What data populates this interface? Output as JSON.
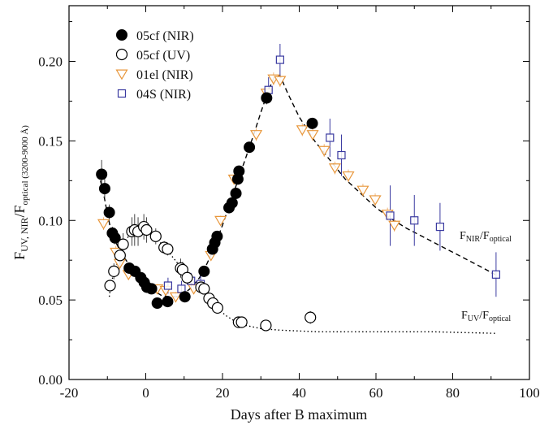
{
  "chart_data": {
    "type": "scatter",
    "xlabel": "Days after B maximum",
    "ylabel_main": "F",
    "ylabel_sub": "UV, NIR",
    "ylabel_main2": "/F",
    "ylabel_sub2": "optical (3200-9000 Å)",
    "xlim": [
      -20,
      100
    ],
    "ylim": [
      0.0,
      0.235
    ],
    "xticks": [
      -20,
      0,
      20,
      40,
      60,
      80,
      100
    ],
    "xtick_labels": [
      "-20",
      "0",
      "20",
      "40",
      "60",
      "80",
      "100"
    ],
    "yticks": [
      0.0,
      0.05,
      0.1,
      0.15,
      0.2
    ],
    "ytick_labels": [
      "0.00",
      "0.05",
      "0.10",
      "0.15",
      "0.20"
    ],
    "grid": false,
    "legend_position": "top-left",
    "series": [
      {
        "name": "05cf  (NIR)",
        "marker": "filled-circle",
        "color": "#000000",
        "points": [
          {
            "x": -11.5,
            "y": 0.129,
            "err": 0.009
          },
          {
            "x": -10.7,
            "y": 0.12,
            "err": 0.006
          },
          {
            "x": -9.5,
            "y": 0.105,
            "err": 0.005
          },
          {
            "x": -8.7,
            "y": 0.092,
            "err": 0.004
          },
          {
            "x": -8.0,
            "y": 0.089,
            "err": 0.004
          },
          {
            "x": -4.3,
            "y": 0.07,
            "err": 0.003
          },
          {
            "x": -2.8,
            "y": 0.068,
            "err": 0.003
          },
          {
            "x": -1.3,
            "y": 0.064,
            "err": 0.003
          },
          {
            "x": -0.4,
            "y": 0.061,
            "err": 0.003
          },
          {
            "x": 0.3,
            "y": 0.058,
            "err": 0.003
          },
          {
            "x": 1.5,
            "y": 0.057,
            "err": 0.003
          },
          {
            "x": 3.0,
            "y": 0.048,
            "err": 0.003
          },
          {
            "x": 5.7,
            "y": 0.049,
            "err": 0.003
          },
          {
            "x": 10.2,
            "y": 0.052,
            "err": 0.003
          },
          {
            "x": 15.2,
            "y": 0.068,
            "err": 0.003
          },
          {
            "x": 17.4,
            "y": 0.082,
            "err": 0.003
          },
          {
            "x": 18.0,
            "y": 0.086,
            "err": 0.003
          },
          {
            "x": 18.6,
            "y": 0.09,
            "err": 0.003
          },
          {
            "x": 21.7,
            "y": 0.108,
            "err": 0.003
          },
          {
            "x": 22.5,
            "y": 0.111,
            "err": 0.003
          },
          {
            "x": 23.5,
            "y": 0.117,
            "err": 0.003
          },
          {
            "x": 24.0,
            "y": 0.126,
            "err": 0.003
          },
          {
            "x": 24.3,
            "y": 0.131,
            "err": 0.003
          },
          {
            "x": 27.0,
            "y": 0.146,
            "err": 0.003
          },
          {
            "x": 31.5,
            "y": 0.177,
            "err": 0.004
          },
          {
            "x": 43.4,
            "y": 0.161,
            "err": 0.003
          }
        ]
      },
      {
        "name": "05cf  (UV)",
        "marker": "open-circle",
        "color": "#000000",
        "points": [
          {
            "x": -9.3,
            "y": 0.059,
            "err": 0.003
          },
          {
            "x": -8.3,
            "y": 0.068,
            "err": 0.005
          },
          {
            "x": -6.7,
            "y": 0.078,
            "err": 0.008
          },
          {
            "x": -5.9,
            "y": 0.085,
            "err": 0.007
          },
          {
            "x": -3.6,
            "y": 0.093,
            "err": 0.009
          },
          {
            "x": -2.9,
            "y": 0.094,
            "err": 0.01
          },
          {
            "x": -2.0,
            "y": 0.093,
            "err": 0.009
          },
          {
            "x": -0.5,
            "y": 0.096,
            "err": 0.008
          },
          {
            "x": 0.2,
            "y": 0.094,
            "err": 0.008
          },
          {
            "x": 2.6,
            "y": 0.09,
            "err": 0.005
          },
          {
            "x": 4.8,
            "y": 0.083,
            "err": 0.004
          },
          {
            "x": 5.7,
            "y": 0.082,
            "err": 0.004
          },
          {
            "x": 9.1,
            "y": 0.07,
            "err": 0.006
          },
          {
            "x": 9.6,
            "y": 0.069,
            "err": 0.005
          },
          {
            "x": 10.8,
            "y": 0.064,
            "err": 0.004
          },
          {
            "x": 14.4,
            "y": 0.058,
            "err": 0.003
          },
          {
            "x": 15.2,
            "y": 0.057,
            "err": 0.003
          },
          {
            "x": 16.5,
            "y": 0.051,
            "err": 0.003
          },
          {
            "x": 17.5,
            "y": 0.048,
            "err": 0.003
          },
          {
            "x": 18.7,
            "y": 0.045,
            "err": 0.002
          },
          {
            "x": 24.2,
            "y": 0.036,
            "err": 0.001
          },
          {
            "x": 25.0,
            "y": 0.036,
            "err": 0.001
          },
          {
            "x": 31.3,
            "y": 0.034,
            "err": 0.003
          },
          {
            "x": 42.9,
            "y": 0.039,
            "err": 0.004
          }
        ]
      },
      {
        "name": "01el  (NIR)",
        "marker": "open-triangle-down",
        "color": "#e8963a",
        "points": [
          {
            "x": -11.0,
            "y": 0.098,
            "err": 0.004
          },
          {
            "x": -7.8,
            "y": 0.08,
            "err": 0.004
          },
          {
            "x": -6.8,
            "y": 0.073,
            "err": 0.004
          },
          {
            "x": -4.5,
            "y": 0.066,
            "err": 0.003
          },
          {
            "x": 3.0,
            "y": 0.057,
            "err": 0.003
          },
          {
            "x": 5.2,
            "y": 0.056,
            "err": 0.003
          },
          {
            "x": 7.8,
            "y": 0.052,
            "err": 0.003
          },
          {
            "x": 12.5,
            "y": 0.057,
            "err": 0.003
          },
          {
            "x": 17.0,
            "y": 0.078,
            "err": 0.003
          },
          {
            "x": 19.5,
            "y": 0.1,
            "err": 0.003
          },
          {
            "x": 23.0,
            "y": 0.126,
            "err": 0.003
          },
          {
            "x": 28.8,
            "y": 0.154,
            "err": 0.004
          },
          {
            "x": 31.5,
            "y": 0.18,
            "err": 0.004
          },
          {
            "x": 33.3,
            "y": 0.189,
            "err": 0.004
          },
          {
            "x": 35.0,
            "y": 0.188,
            "err": 0.004
          },
          {
            "x": 40.8,
            "y": 0.157,
            "err": 0.004
          },
          {
            "x": 43.5,
            "y": 0.154,
            "err": 0.004
          },
          {
            "x": 46.5,
            "y": 0.144,
            "err": 0.004
          },
          {
            "x": 49.3,
            "y": 0.133,
            "err": 0.004
          },
          {
            "x": 52.8,
            "y": 0.128,
            "err": 0.004
          },
          {
            "x": 56.6,
            "y": 0.119,
            "err": 0.004
          },
          {
            "x": 59.8,
            "y": 0.113,
            "err": 0.004
          },
          {
            "x": 63.0,
            "y": 0.104,
            "err": 0.004
          },
          {
            "x": 64.8,
            "y": 0.097,
            "err": 0.004
          }
        ]
      },
      {
        "name": "04S  (NIR)",
        "marker": "open-square",
        "color": "#3a3aa0",
        "points": [
          {
            "x": 5.8,
            "y": 0.059,
            "err": 0.005
          },
          {
            "x": 9.3,
            "y": 0.057,
            "err": 0.005
          },
          {
            "x": 11.8,
            "y": 0.062,
            "err": 0.005
          },
          {
            "x": 14.3,
            "y": 0.06,
            "err": 0.005
          },
          {
            "x": 32.0,
            "y": 0.182,
            "err": 0.008
          },
          {
            "x": 35.0,
            "y": 0.201,
            "err": 0.01
          },
          {
            "x": 48.0,
            "y": 0.152,
            "err": 0.012
          },
          {
            "x": 51.0,
            "y": 0.141,
            "err": 0.013
          },
          {
            "x": 63.7,
            "y": 0.103,
            "err": 0.019
          },
          {
            "x": 70.0,
            "y": 0.1,
            "err": 0.016
          },
          {
            "x": 76.7,
            "y": 0.096,
            "err": 0.015
          },
          {
            "x": 91.3,
            "y": 0.066,
            "err": 0.014
          }
        ]
      }
    ],
    "curves": [
      {
        "name": "NIR fit",
        "style": "dashed",
        "points": [
          [
            -11.8,
            0.125
          ],
          [
            -11,
            0.117
          ],
          [
            -10,
            0.104
          ],
          [
            -9,
            0.093
          ],
          [
            -8,
            0.087
          ],
          [
            -6,
            0.078
          ],
          [
            -4,
            0.071
          ],
          [
            -2,
            0.066
          ],
          [
            0,
            0.06
          ],
          [
            2,
            0.056
          ],
          [
            4,
            0.053
          ],
          [
            6,
            0.052
          ],
          [
            8,
            0.052
          ],
          [
            10,
            0.054
          ],
          [
            12,
            0.058
          ],
          [
            14,
            0.064
          ],
          [
            16,
            0.073
          ],
          [
            18,
            0.084
          ],
          [
            20,
            0.097
          ],
          [
            22,
            0.111
          ],
          [
            24,
            0.125
          ],
          [
            26,
            0.139
          ],
          [
            28,
            0.153
          ],
          [
            30,
            0.168
          ],
          [
            32,
            0.182
          ],
          [
            33.5,
            0.19
          ],
          [
            35,
            0.191
          ],
          [
            37,
            0.18
          ],
          [
            40,
            0.165
          ],
          [
            44,
            0.15
          ],
          [
            48,
            0.138
          ],
          [
            52,
            0.126
          ],
          [
            56,
            0.117
          ],
          [
            60,
            0.108
          ],
          [
            64,
            0.101
          ],
          [
            68,
            0.095
          ],
          [
            72,
            0.09
          ],
          [
            76,
            0.085
          ],
          [
            80,
            0.08
          ],
          [
            84,
            0.075
          ],
          [
            88,
            0.07
          ],
          [
            91,
            0.066
          ]
        ]
      },
      {
        "name": "UV fit",
        "style": "dotted",
        "points": [
          [
            -9.5,
            0.052
          ],
          [
            -9,
            0.061
          ],
          [
            -8,
            0.069
          ],
          [
            -7,
            0.076
          ],
          [
            -6,
            0.083
          ],
          [
            -5,
            0.088
          ],
          [
            -4,
            0.092
          ],
          [
            -2.5,
            0.094
          ],
          [
            -1,
            0.094
          ],
          [
            1,
            0.092
          ],
          [
            3,
            0.088
          ],
          [
            5,
            0.083
          ],
          [
            7,
            0.077
          ],
          [
            9,
            0.071
          ],
          [
            11,
            0.065
          ],
          [
            13,
            0.06
          ],
          [
            15,
            0.055
          ],
          [
            17,
            0.049
          ],
          [
            19,
            0.044
          ],
          [
            21,
            0.04
          ],
          [
            23,
            0.037
          ],
          [
            26,
            0.034
          ],
          [
            30,
            0.032
          ],
          [
            35,
            0.031
          ],
          [
            45,
            0.03
          ],
          [
            60,
            0.03
          ],
          [
            75,
            0.03
          ],
          [
            91,
            0.029
          ]
        ]
      }
    ],
    "curve_labels": {
      "nir": {
        "main": "F",
        "sub1": "NIR",
        "slash": "/F",
        "sub2": "optical"
      },
      "uv": {
        "main": "F",
        "sub1": "UV",
        "slash": "/F",
        "sub2": "optical"
      }
    }
  }
}
